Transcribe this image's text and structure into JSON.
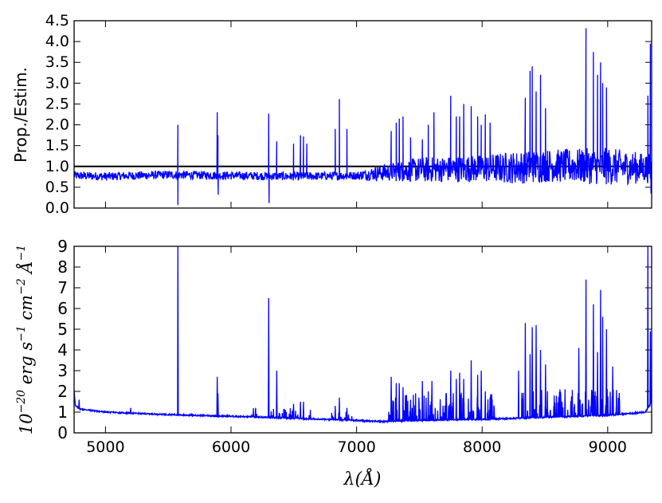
{
  "chart_data": [
    {
      "type": "line",
      "ylabel": "Prop./Estim.",
      "xlim": [
        4750,
        9350
      ],
      "ylim": [
        0.0,
        4.5
      ],
      "yticks": [
        0.0,
        0.5,
        1.0,
        1.5,
        2.0,
        2.5,
        3.0,
        3.5,
        4.0,
        4.5
      ],
      "ytick_labels": [
        "0.0",
        "0.5",
        "1.0",
        "1.5",
        "2.0",
        "2.5",
        "3.0",
        "3.5",
        "4.0",
        "4.5"
      ],
      "xticks": [
        5000,
        6000,
        7000,
        8000,
        9000
      ],
      "reference_line": {
        "y": 1.0,
        "color": "#000000"
      },
      "series_color": "#0000ff",
      "baseline": [
        [
          4750,
          0.78
        ],
        [
          5000,
          0.76
        ],
        [
          5500,
          0.8
        ],
        [
          6000,
          0.78
        ],
        [
          6500,
          0.76
        ],
        [
          7000,
          0.78
        ],
        [
          7200,
          0.85
        ],
        [
          7500,
          0.92
        ],
        [
          8000,
          0.95
        ],
        [
          8300,
          0.98
        ],
        [
          8500,
          1.02
        ],
        [
          9000,
          1.0
        ],
        [
          9350,
          0.95
        ]
      ],
      "noise": [
        [
          4750,
          0.1
        ],
        [
          5500,
          0.1
        ],
        [
          6000,
          0.1
        ],
        [
          7000,
          0.1
        ],
        [
          7200,
          0.2
        ],
        [
          7500,
          0.3
        ],
        [
          8000,
          0.33
        ],
        [
          8300,
          0.4
        ],
        [
          8600,
          0.4
        ],
        [
          9000,
          0.45
        ],
        [
          9350,
          0.35
        ]
      ],
      "peaks": [
        {
          "x": 5577,
          "y": 2.0
        },
        {
          "x": 5577,
          "y": 0.07
        },
        {
          "x": 5890,
          "y": 2.3
        },
        {
          "x": 5896,
          "y": 1.75
        },
        {
          "x": 5898,
          "y": 0.32
        },
        {
          "x": 6300,
          "y": 2.27
        },
        {
          "x": 6303,
          "y": 0.12
        },
        {
          "x": 6364,
          "y": 1.6
        },
        {
          "x": 6498,
          "y": 1.55
        },
        {
          "x": 6553,
          "y": 1.75
        },
        {
          "x": 6577,
          "y": 1.72
        },
        {
          "x": 6604,
          "y": 1.55
        },
        {
          "x": 6830,
          "y": 1.9
        },
        {
          "x": 6863,
          "y": 2.62
        },
        {
          "x": 6923,
          "y": 1.9
        },
        {
          "x": 7276,
          "y": 1.85
        },
        {
          "x": 7316,
          "y": 2.05
        },
        {
          "x": 7340,
          "y": 2.15
        },
        {
          "x": 7370,
          "y": 2.2
        },
        {
          "x": 7430,
          "y": 1.7
        },
        {
          "x": 7524,
          "y": 1.65
        },
        {
          "x": 7571,
          "y": 2.0
        },
        {
          "x": 7616,
          "y": 2.3
        },
        {
          "x": 7750,
          "y": 2.7
        },
        {
          "x": 7794,
          "y": 2.2
        },
        {
          "x": 7821,
          "y": 2.2
        },
        {
          "x": 7853,
          "y": 2.5
        },
        {
          "x": 7913,
          "y": 2.45
        },
        {
          "x": 7964,
          "y": 2.2
        },
        {
          "x": 7993,
          "y": 2.0
        },
        {
          "x": 8025,
          "y": 2.25
        },
        {
          "x": 8063,
          "y": 2.05
        },
        {
          "x": 8344,
          "y": 2.65
        },
        {
          "x": 8382,
          "y": 3.3
        },
        {
          "x": 8399,
          "y": 3.4
        },
        {
          "x": 8430,
          "y": 2.8
        },
        {
          "x": 8465,
          "y": 3.2
        },
        {
          "x": 8505,
          "y": 2.4
        },
        {
          "x": 8827,
          "y": 4.32
        },
        {
          "x": 8886,
          "y": 3.75
        },
        {
          "x": 8919,
          "y": 3.2
        },
        {
          "x": 8943,
          "y": 3.5
        },
        {
          "x": 8960,
          "y": 3.0
        },
        {
          "x": 8990,
          "y": 2.9
        },
        {
          "x": 9320,
          "y": 2.7
        },
        {
          "x": 9340,
          "y": 3.95
        },
        {
          "x": 9345,
          "y": 0.35
        }
      ]
    },
    {
      "type": "line",
      "xlabel": "λ(Å)",
      "ylabel_parts": [
        "10",
        "−20",
        " erg s",
        "−1",
        " cm",
        "−2",
        " Å",
        "−1"
      ],
      "xlim": [
        4750,
        9350
      ],
      "ylim": [
        0,
        9
      ],
      "yticks": [
        0,
        1,
        2,
        3,
        4,
        5,
        6,
        7,
        8,
        9
      ],
      "ytick_labels": [
        "0",
        "1",
        "2",
        "3",
        "4",
        "5",
        "6",
        "7",
        "8",
        "9"
      ],
      "xticks": [
        5000,
        6000,
        7000,
        8000,
        9000
      ],
      "xtick_labels": [
        "5000",
        "6000",
        "7000",
        "8000",
        "9000"
      ],
      "series_color": "#0000ff",
      "continuum": [
        [
          4750,
          2.1
        ],
        [
          4760,
          1.3
        ],
        [
          4800,
          1.15
        ],
        [
          5000,
          1.0
        ],
        [
          5500,
          0.88
        ],
        [
          6000,
          0.8
        ],
        [
          6500,
          0.7
        ],
        [
          7000,
          0.6
        ],
        [
          7200,
          0.55
        ],
        [
          7500,
          0.6
        ],
        [
          8000,
          0.65
        ],
        [
          8500,
          0.75
        ],
        [
          9000,
          0.85
        ],
        [
          9300,
          1.0
        ],
        [
          9350,
          1.5
        ]
      ],
      "peaks": [
        {
          "x": 4790,
          "y": 1.6
        },
        {
          "x": 5200,
          "y": 1.2
        },
        {
          "x": 5577,
          "y": 9.0
        },
        {
          "x": 5890,
          "y": 2.7
        },
        {
          "x": 5896,
          "y": 1.9
        },
        {
          "x": 6300,
          "y": 6.5
        },
        {
          "x": 6364,
          "y": 3.0
        },
        {
          "x": 6498,
          "y": 1.4
        },
        {
          "x": 6553,
          "y": 1.5
        },
        {
          "x": 6577,
          "y": 1.5
        },
        {
          "x": 6830,
          "y": 1.3
        },
        {
          "x": 6863,
          "y": 1.7
        },
        {
          "x": 6923,
          "y": 1.2
        },
        {
          "x": 7276,
          "y": 2.7
        },
        {
          "x": 7316,
          "y": 2.4
        },
        {
          "x": 7340,
          "y": 2.4
        },
        {
          "x": 7370,
          "y": 2.2
        },
        {
          "x": 7430,
          "y": 1.6
        },
        {
          "x": 7524,
          "y": 2.5
        },
        {
          "x": 7571,
          "y": 2.0
        },
        {
          "x": 7600,
          "y": 2.5
        },
        {
          "x": 7750,
          "y": 3.0
        },
        {
          "x": 7794,
          "y": 2.6
        },
        {
          "x": 7821,
          "y": 2.9
        },
        {
          "x": 7853,
          "y": 2.6
        },
        {
          "x": 7913,
          "y": 3.5
        },
        {
          "x": 7964,
          "y": 2.8
        },
        {
          "x": 7993,
          "y": 3.0
        },
        {
          "x": 8025,
          "y": 2.0
        },
        {
          "x": 8063,
          "y": 1.7
        },
        {
          "x": 8290,
          "y": 3.0
        },
        {
          "x": 8344,
          "y": 5.3
        },
        {
          "x": 8382,
          "y": 3.8
        },
        {
          "x": 8399,
          "y": 5.1
        },
        {
          "x": 8430,
          "y": 5.2
        },
        {
          "x": 8465,
          "y": 4.0
        },
        {
          "x": 8505,
          "y": 3.3
        },
        {
          "x": 8660,
          "y": 2.1
        },
        {
          "x": 8770,
          "y": 4.1
        },
        {
          "x": 8827,
          "y": 7.4
        },
        {
          "x": 8886,
          "y": 6.2
        },
        {
          "x": 8919,
          "y": 3.9
        },
        {
          "x": 8943,
          "y": 6.9
        },
        {
          "x": 8960,
          "y": 5.6
        },
        {
          "x": 8990,
          "y": 5.0
        },
        {
          "x": 9040,
          "y": 3.2
        },
        {
          "x": 9320,
          "y": 9.0
        },
        {
          "x": 9340,
          "y": 4.9
        },
        {
          "x": 9348,
          "y": 1.5
        }
      ]
    }
  ]
}
